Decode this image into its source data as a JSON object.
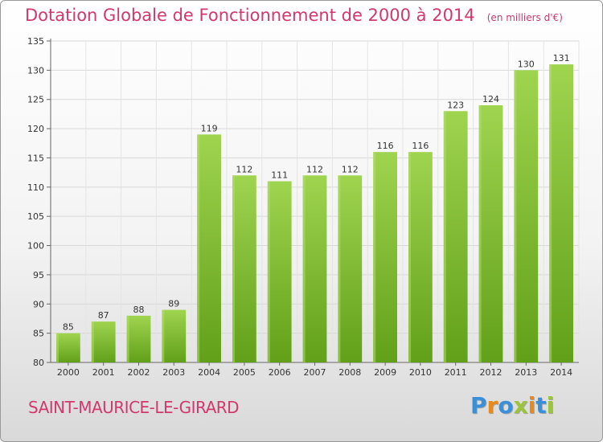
{
  "chart_data": {
    "type": "bar",
    "title": "Dotation Globale de Fonctionnement de 2000 à 2014",
    "subtitle": "(en milliers d'€)",
    "categories": [
      "2000",
      "2001",
      "2002",
      "2003",
      "2004",
      "2005",
      "2006",
      "2007",
      "2008",
      "2009",
      "2010",
      "2011",
      "2012",
      "2013",
      "2014"
    ],
    "values": [
      85,
      87,
      88,
      89,
      119,
      112,
      111,
      112,
      112,
      116,
      116,
      123,
      124,
      130,
      131
    ],
    "ylim": [
      80,
      135
    ],
    "yticks": [
      80,
      85,
      90,
      95,
      100,
      105,
      110,
      115,
      120,
      125,
      130,
      135
    ],
    "grid": true,
    "bar_color": "#8cc63f",
    "bar_color_dark": "#6aa31f"
  },
  "footer": {
    "commune": "SAINT-MAURICE-LE-GIRARD",
    "logo_text": "Proxiti",
    "logo_colors": [
      "#3a8fd8",
      "#e8891c",
      "#3a8fd8",
      "#9ac43b",
      "#e8891c",
      "#3a8fd8",
      "#9ac43b"
    ]
  }
}
